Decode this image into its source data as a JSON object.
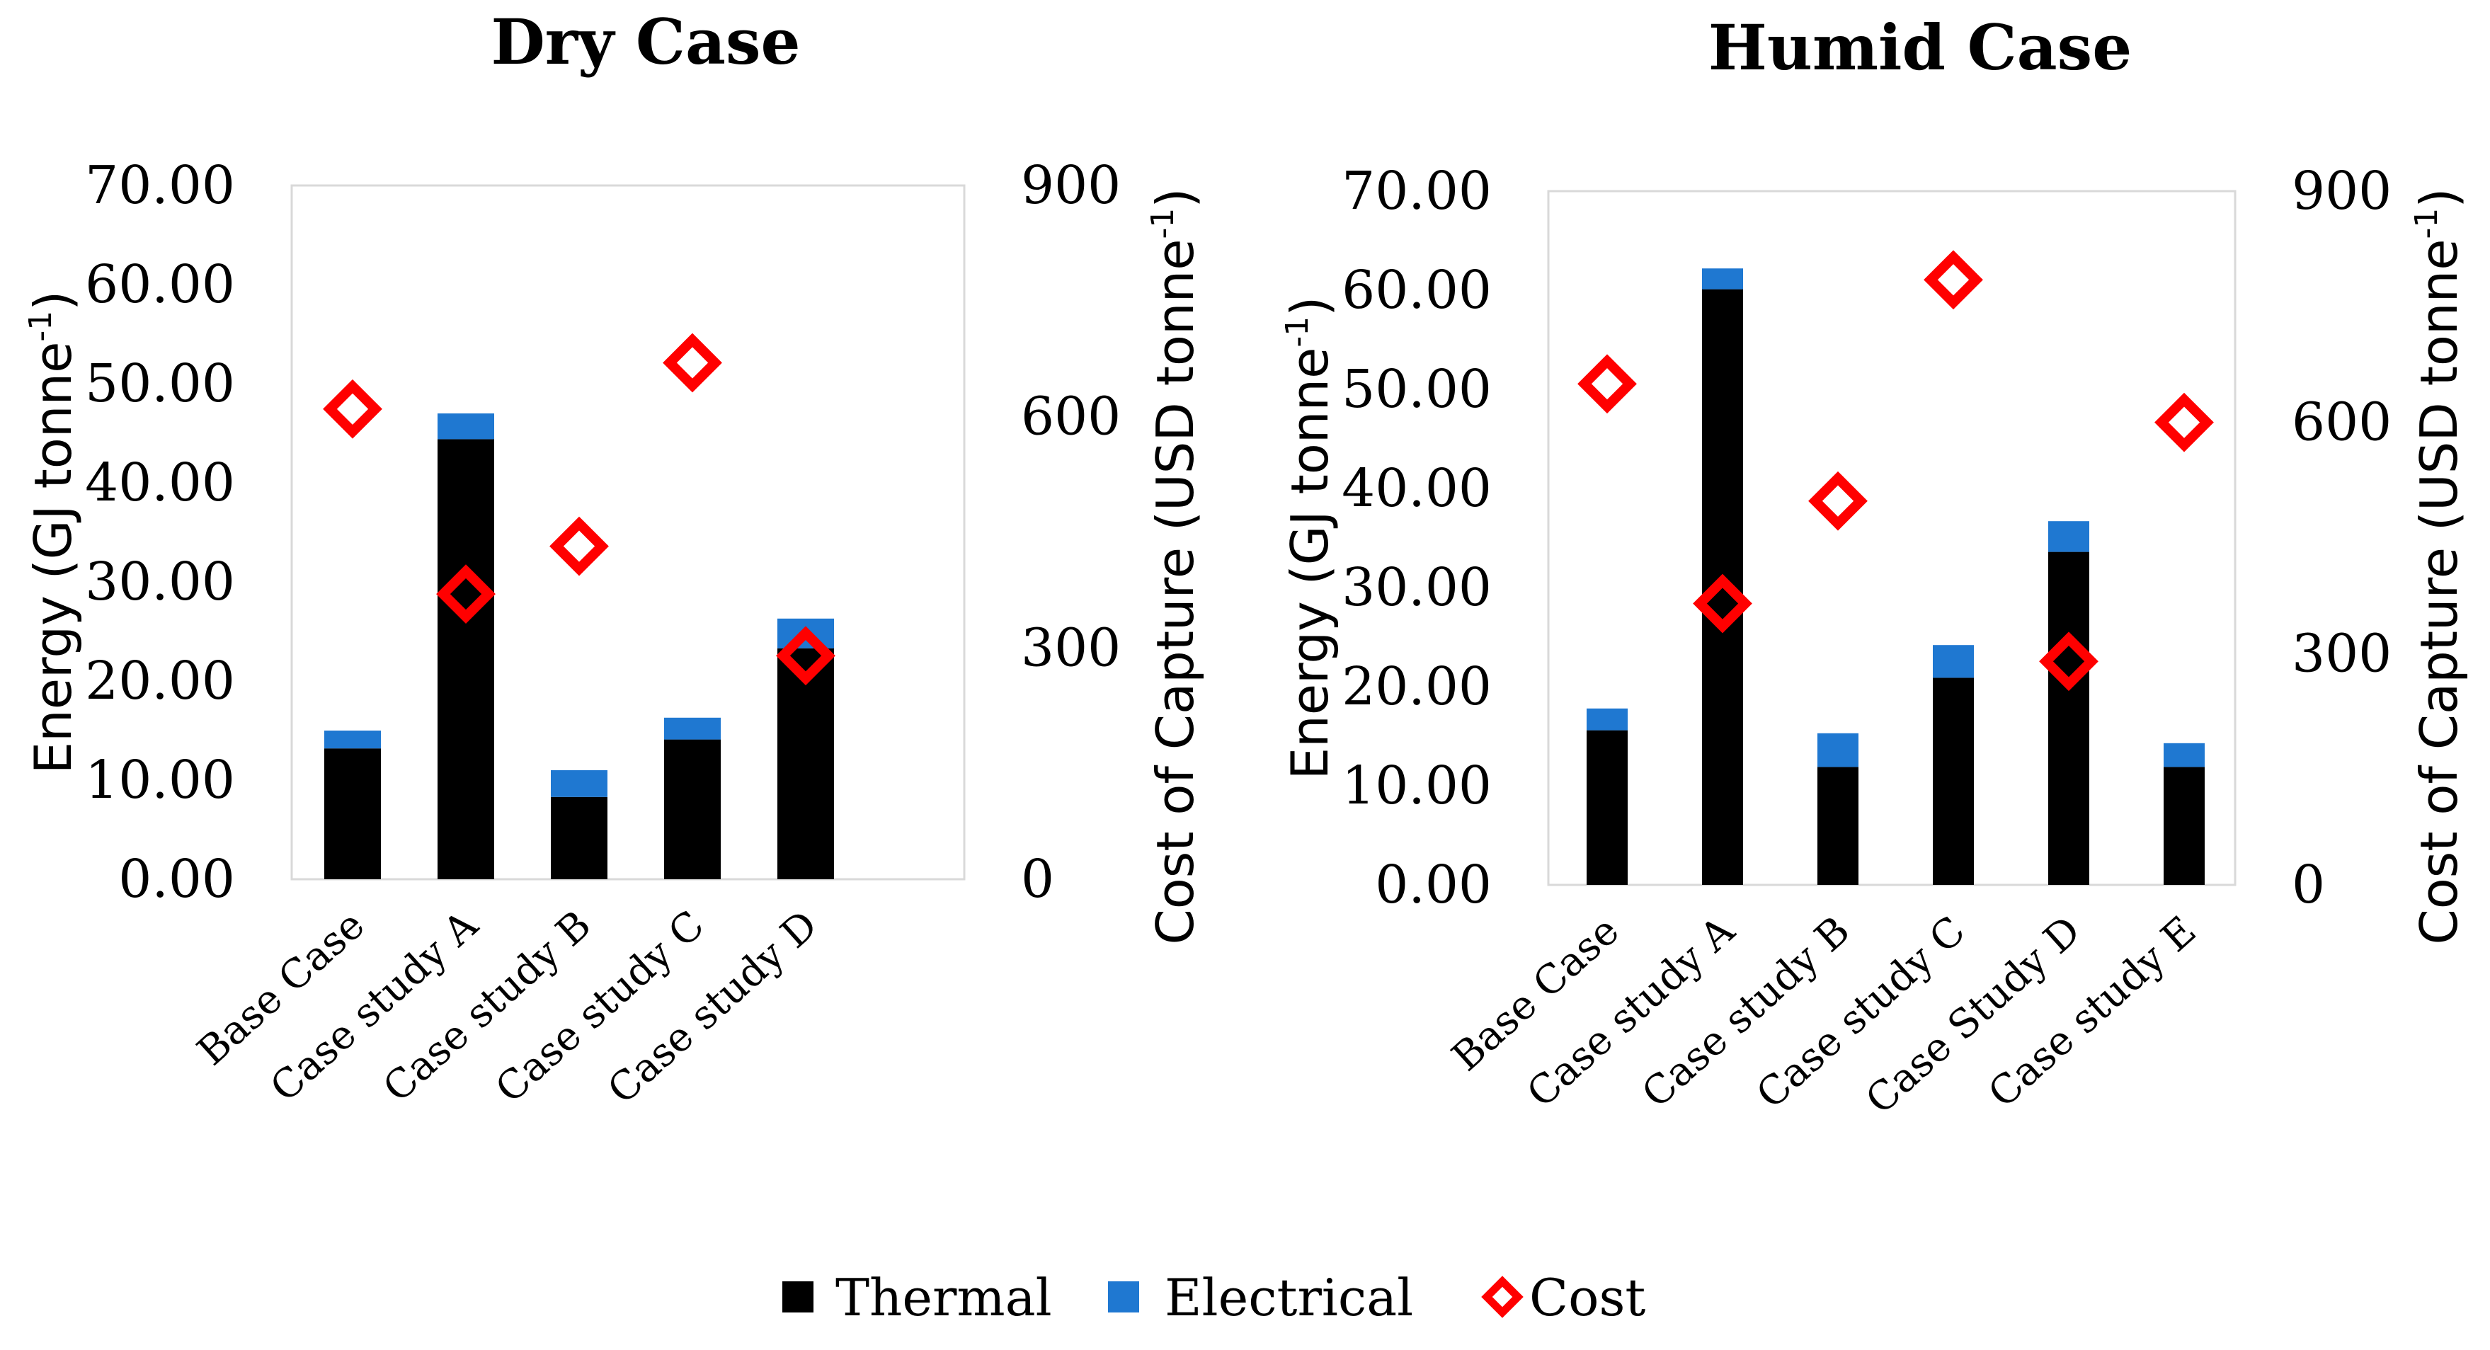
{
  "chart_data": [
    {
      "type": "bar",
      "stacked": true,
      "title": "Dry Case",
      "categories": [
        "Base Case",
        "Case study A",
        "Case study B",
        "Case study C",
        "Case study D"
      ],
      "series": [
        {
          "name": "Thermal",
          "color": "#000000",
          "values": [
            13.2,
            44.4,
            8.3,
            14.1,
            23.3
          ]
        },
        {
          "name": "Electrical",
          "color": "#1f78d1",
          "values": [
            1.8,
            2.6,
            2.7,
            2.2,
            3.0
          ]
        }
      ],
      "cost": {
        "name": "Cost",
        "color": "#ff0000",
        "values": [
          610,
          370,
          432,
          670,
          290
        ]
      },
      "ylabel": "Energy (GJ tonne",
      "ylabel_sup": "-1",
      "ylabel_close": ")",
      "y2label": "Cost of Capture (USD tonne",
      "y2label_sup": "-1",
      "y2label_close": ")",
      "ylim": [
        0,
        70
      ],
      "y2lim": [
        0,
        900
      ],
      "yticks": [
        "0.00",
        "10.00",
        "20.00",
        "30.00",
        "40.00",
        "50.00",
        "60.00",
        "70.00"
      ],
      "y2ticks": [
        "0",
        "300",
        "600",
        "900"
      ]
    },
    {
      "type": "bar",
      "stacked": true,
      "title": "Humid Case",
      "categories": [
        "Base Case",
        "Case study A",
        "Case study B",
        "Case study C",
        "Case Study D",
        "Case study E"
      ],
      "series": [
        {
          "name": "Thermal",
          "color": "#000000",
          "values": [
            15.6,
            60.1,
            11.9,
            20.9,
            33.6,
            11.9
          ]
        },
        {
          "name": "Electrical",
          "color": "#1f78d1",
          "values": [
            2.2,
            2.1,
            3.4,
            3.3,
            3.1,
            2.4
          ]
        }
      ],
      "cost": {
        "name": "Cost",
        "color": "#ff0000",
        "values": [
          650,
          365,
          498,
          785,
          290,
          600
        ]
      },
      "ylabel": "Energy (GJ tonne",
      "ylabel_sup": "-1",
      "ylabel_close": ")",
      "y2label": "Cost of Capture (USD tonne",
      "y2label_sup": "-1",
      "y2label_close": ")",
      "ylim": [
        0,
        70
      ],
      "y2lim": [
        0,
        900
      ],
      "yticks": [
        "0.00",
        "10.00",
        "20.00",
        "30.00",
        "40.00",
        "50.00",
        "60.00",
        "70.00"
      ],
      "y2ticks": [
        "0",
        "300",
        "600",
        "900"
      ]
    }
  ],
  "legend": [
    {
      "label": "Thermal",
      "color": "#000000",
      "marker": "square"
    },
    {
      "label": "Electrical",
      "color": "#1f78d1",
      "marker": "square"
    },
    {
      "label": "Cost",
      "color": "#ff0000",
      "marker": "diamond-outline"
    }
  ]
}
